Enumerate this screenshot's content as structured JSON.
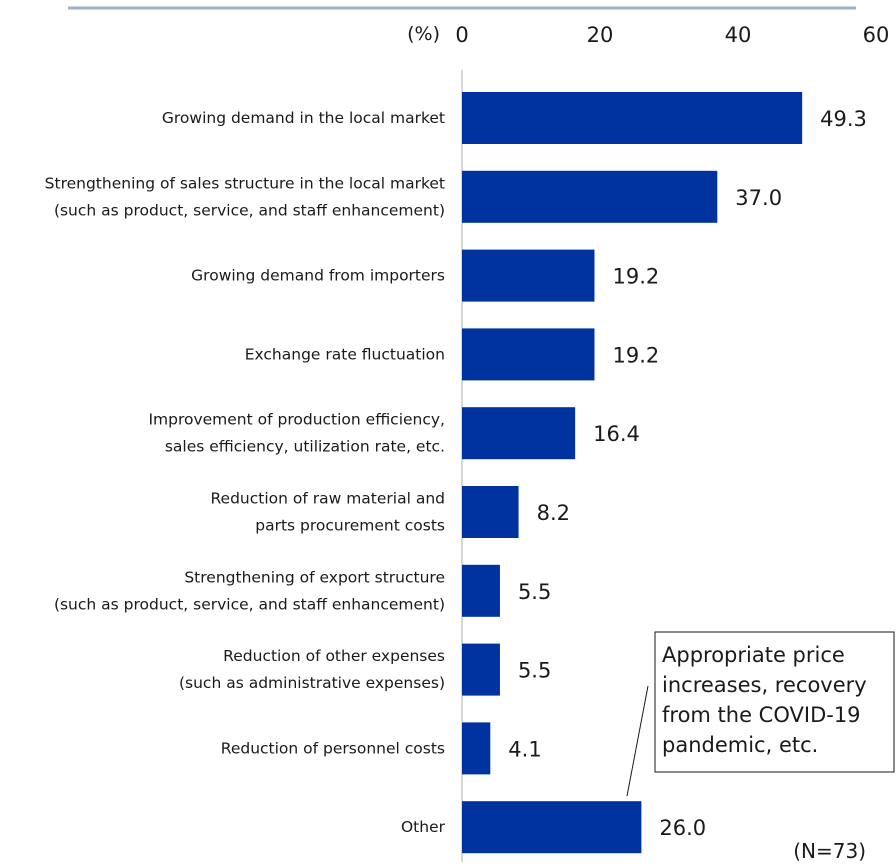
{
  "chart_data": {
    "type": "bar",
    "orientation": "horizontal",
    "unit_label": "(%)",
    "x_ticks": [
      "0",
      "20",
      "40",
      "60"
    ],
    "xlim": [
      0,
      60
    ],
    "categories": [
      [
        "Growing demand in the local market"
      ],
      [
        "Strengthening of sales structure in the local market",
        "(such as product, service, and staff enhancement)"
      ],
      [
        "Growing demand from importers"
      ],
      [
        "Exchange rate fluctuation"
      ],
      [
        "Improvement of production efficiency,",
        "sales efficiency, utilization rate, etc."
      ],
      [
        "Reduction of raw material and",
        "parts procurement costs"
      ],
      [
        "Strengthening of export structure",
        "(such as product, service, and staff enhancement)"
      ],
      [
        "Reduction of other expenses",
        "(such as administrative expenses)"
      ],
      [
        "Reduction of personnel costs"
      ],
      [
        "Other"
      ]
    ],
    "values": [
      49.3,
      37.0,
      19.2,
      19.2,
      16.4,
      8.2,
      5.5,
      5.5,
      4.1,
      26.0
    ],
    "value_labels": [
      "49.3",
      "37.0",
      "19.2",
      "19.2",
      "16.4",
      "8.2",
      "5.5",
      "5.5",
      "4.1",
      "26.0"
    ],
    "annotation": {
      "lines": [
        "Appropriate price",
        "increases, recovery",
        "from the COVID-19",
        "pandemic, etc."
      ],
      "points_to": "Other"
    },
    "note": "(N=73)",
    "grid": false,
    "legend": "none"
  },
  "colors": {
    "bar": "#0033a0",
    "top_rule": "#9fb1c8",
    "axis": "#c8c8c8"
  }
}
